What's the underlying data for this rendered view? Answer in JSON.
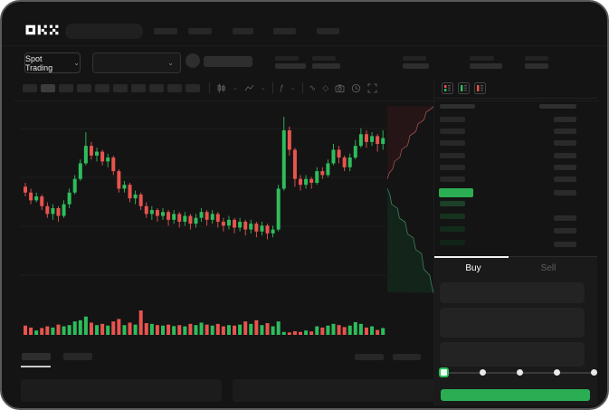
{
  "brand": {
    "logo": "OKX"
  },
  "colors": {
    "up": "#2EBD5C",
    "down": "#E8544E",
    "accent_green": "#2BAD53",
    "background": "#141414"
  },
  "market_selector": {
    "label": "Spot Trading",
    "chevron": "⌄"
  },
  "pair_dropdown": {
    "chevron": "⌄"
  },
  "chart_toolbar": {
    "timeframe_count": 10,
    "active_timeframe_index": 1,
    "icon_names": [
      "candle-style-icon",
      "overlay-style-icon",
      "indicators-icon",
      "wave-tool-icon",
      "tag-tool-icon",
      "camera-icon",
      "history-icon",
      "fullscreen-icon"
    ],
    "indicators_glyph": "ƒ",
    "wave_glyph": "∿",
    "tag_glyph": "◇"
  },
  "chart_data": {
    "type": "candlestick",
    "title": "",
    "ylim": [
      0,
      100
    ],
    "grid_y_values": [
      87.9,
      62.8,
      37.7,
      12.6
    ],
    "colors": {
      "up": "#2EBD5C",
      "down": "#E8544E",
      "grid": "#1e1e1e"
    },
    "candles": [
      [
        58,
        60,
        53,
        55
      ],
      [
        55,
        57,
        49,
        51
      ],
      [
        51,
        55,
        50,
        53
      ],
      [
        53,
        54,
        46,
        48
      ],
      [
        48,
        50,
        42,
        44
      ],
      [
        44,
        49,
        41,
        47
      ],
      [
        47,
        48,
        40,
        43
      ],
      [
        43,
        51,
        42,
        49
      ],
      [
        49,
        57,
        47,
        55
      ],
      [
        55,
        64,
        54,
        62
      ],
      [
        62,
        72,
        61,
        70
      ],
      [
        70,
        86,
        69,
        79
      ],
      [
        79,
        81,
        72,
        74
      ],
      [
        74,
        78,
        71,
        76
      ],
      [
        76,
        77,
        69,
        71
      ],
      [
        71,
        75,
        68,
        73
      ],
      [
        73,
        74,
        64,
        66
      ],
      [
        66,
        67,
        55,
        57
      ],
      [
        57,
        61,
        55,
        59
      ],
      [
        59,
        60,
        50,
        52
      ],
      [
        52,
        56,
        49,
        54
      ],
      [
        54,
        55,
        46,
        48
      ],
      [
        48,
        50,
        42,
        44
      ],
      [
        44,
        48,
        41,
        46
      ],
      [
        46,
        47,
        40,
        43
      ],
      [
        43,
        47,
        41,
        45
      ],
      [
        45,
        46,
        38,
        41
      ],
      [
        41,
        46,
        39,
        44
      ],
      [
        44,
        45,
        37,
        40
      ],
      [
        40,
        45,
        38,
        43
      ],
      [
        43,
        44,
        36,
        39
      ],
      [
        39,
        44,
        37,
        42
      ],
      [
        42,
        47,
        40,
        45
      ],
      [
        45,
        46,
        38,
        41
      ],
      [
        41,
        46,
        39,
        44
      ],
      [
        44,
        45,
        37,
        40
      ],
      [
        40,
        42,
        35,
        38
      ],
      [
        38,
        43,
        36,
        41
      ],
      [
        41,
        42,
        34,
        37
      ],
      [
        37,
        42,
        35,
        40
      ],
      [
        40,
        41,
        33,
        36
      ],
      [
        36,
        41,
        34,
        39
      ],
      [
        39,
        40,
        32,
        35
      ],
      [
        35,
        40,
        33,
        38
      ],
      [
        38,
        39,
        31,
        34
      ],
      [
        34,
        38,
        32,
        36
      ],
      [
        36,
        59,
        35,
        57
      ],
      [
        57,
        94,
        56,
        87
      ],
      [
        87,
        89,
        74,
        77
      ],
      [
        77,
        78,
        58,
        62
      ],
      [
        62,
        64,
        56,
        59
      ],
      [
        59,
        64,
        57,
        62
      ],
      [
        62,
        63,
        57,
        60
      ],
      [
        60,
        68,
        59,
        66
      ],
      [
        66,
        68,
        62,
        64
      ],
      [
        64,
        72,
        63,
        70
      ],
      [
        70,
        80,
        69,
        77
      ],
      [
        77,
        79,
        70,
        73
      ],
      [
        73,
        74,
        66,
        68
      ],
      [
        68,
        75,
        66,
        73
      ],
      [
        73,
        82,
        72,
        79
      ],
      [
        79,
        88,
        78,
        85
      ],
      [
        85,
        87,
        78,
        81
      ],
      [
        81,
        86,
        79,
        84
      ],
      [
        84,
        85,
        76,
        80
      ],
      [
        80,
        87,
        77,
        83
      ]
    ],
    "volumes": [
      38,
      30,
      18,
      28,
      35,
      30,
      42,
      35,
      40,
      55,
      60,
      75,
      50,
      40,
      45,
      38,
      55,
      65,
      40,
      50,
      42,
      100,
      48,
      45,
      40,
      38,
      42,
      36,
      40,
      35,
      45,
      40,
      50,
      42,
      38,
      45,
      35,
      40,
      38,
      42,
      55,
      45,
      60,
      40,
      48,
      35,
      55,
      12,
      10,
      15,
      12,
      18,
      14,
      35,
      30,
      38,
      45,
      40,
      32,
      38,
      52,
      45,
      30,
      35,
      20,
      28
    ],
    "depth": {
      "ask_line": "#9d524d",
      "ask_fill": "#251517",
      "bid_line": "#3e8360",
      "bid_fill": "#13241b",
      "asks": [
        [
          0.04,
          0.39
        ],
        [
          0.08,
          0.36
        ],
        [
          0.15,
          0.34
        ],
        [
          0.19,
          0.3
        ],
        [
          0.3,
          0.28
        ],
        [
          0.34,
          0.24
        ],
        [
          0.46,
          0.22
        ],
        [
          0.51,
          0.17
        ],
        [
          0.63,
          0.15
        ],
        [
          0.68,
          0.11
        ],
        [
          0.8,
          0.09
        ],
        [
          0.85,
          0.05
        ],
        [
          0.97,
          0.03
        ],
        [
          1.0,
          0.02
        ]
      ],
      "bids": [
        [
          0.04,
          0.44
        ],
        [
          0.09,
          0.47
        ],
        [
          0.13,
          0.52
        ],
        [
          0.25,
          0.54
        ],
        [
          0.29,
          0.59
        ],
        [
          0.41,
          0.61
        ],
        [
          0.46,
          0.67
        ],
        [
          0.58,
          0.69
        ],
        [
          0.63,
          0.75
        ],
        [
          0.75,
          0.77
        ],
        [
          0.8,
          0.85
        ],
        [
          0.92,
          0.88
        ],
        [
          0.97,
          0.94
        ],
        [
          1.0,
          0.97
        ]
      ]
    }
  },
  "order_book": {
    "view_icon_names": [
      "book-split-view-icon",
      "book-bids-view-icon",
      "book-asks-view-icon"
    ],
    "ask_rows": [
      {
        "right": true
      },
      {
        "right": true
      },
      {
        "right": true
      },
      {
        "right": true
      },
      {
        "right": true
      },
      {
        "right": true
      }
    ],
    "bid_rows": [
      {
        "right": false
      },
      {
        "right": true
      },
      {
        "right": true
      },
      {
        "right": true
      }
    ],
    "bid_bar_colors": [
      "#1c4129",
      "#16331f",
      "#132b1b",
      "#102417"
    ],
    "price_bar_color": "#2BAD53"
  },
  "trade_panel": {
    "tabs": [
      {
        "label": "Buy",
        "active": true
      },
      {
        "label": "Sell",
        "active": false
      }
    ],
    "field_count": 3,
    "slider": {
      "stop_count": 5,
      "active_stop": 0
    },
    "submit_color": "#2BAD53"
  }
}
